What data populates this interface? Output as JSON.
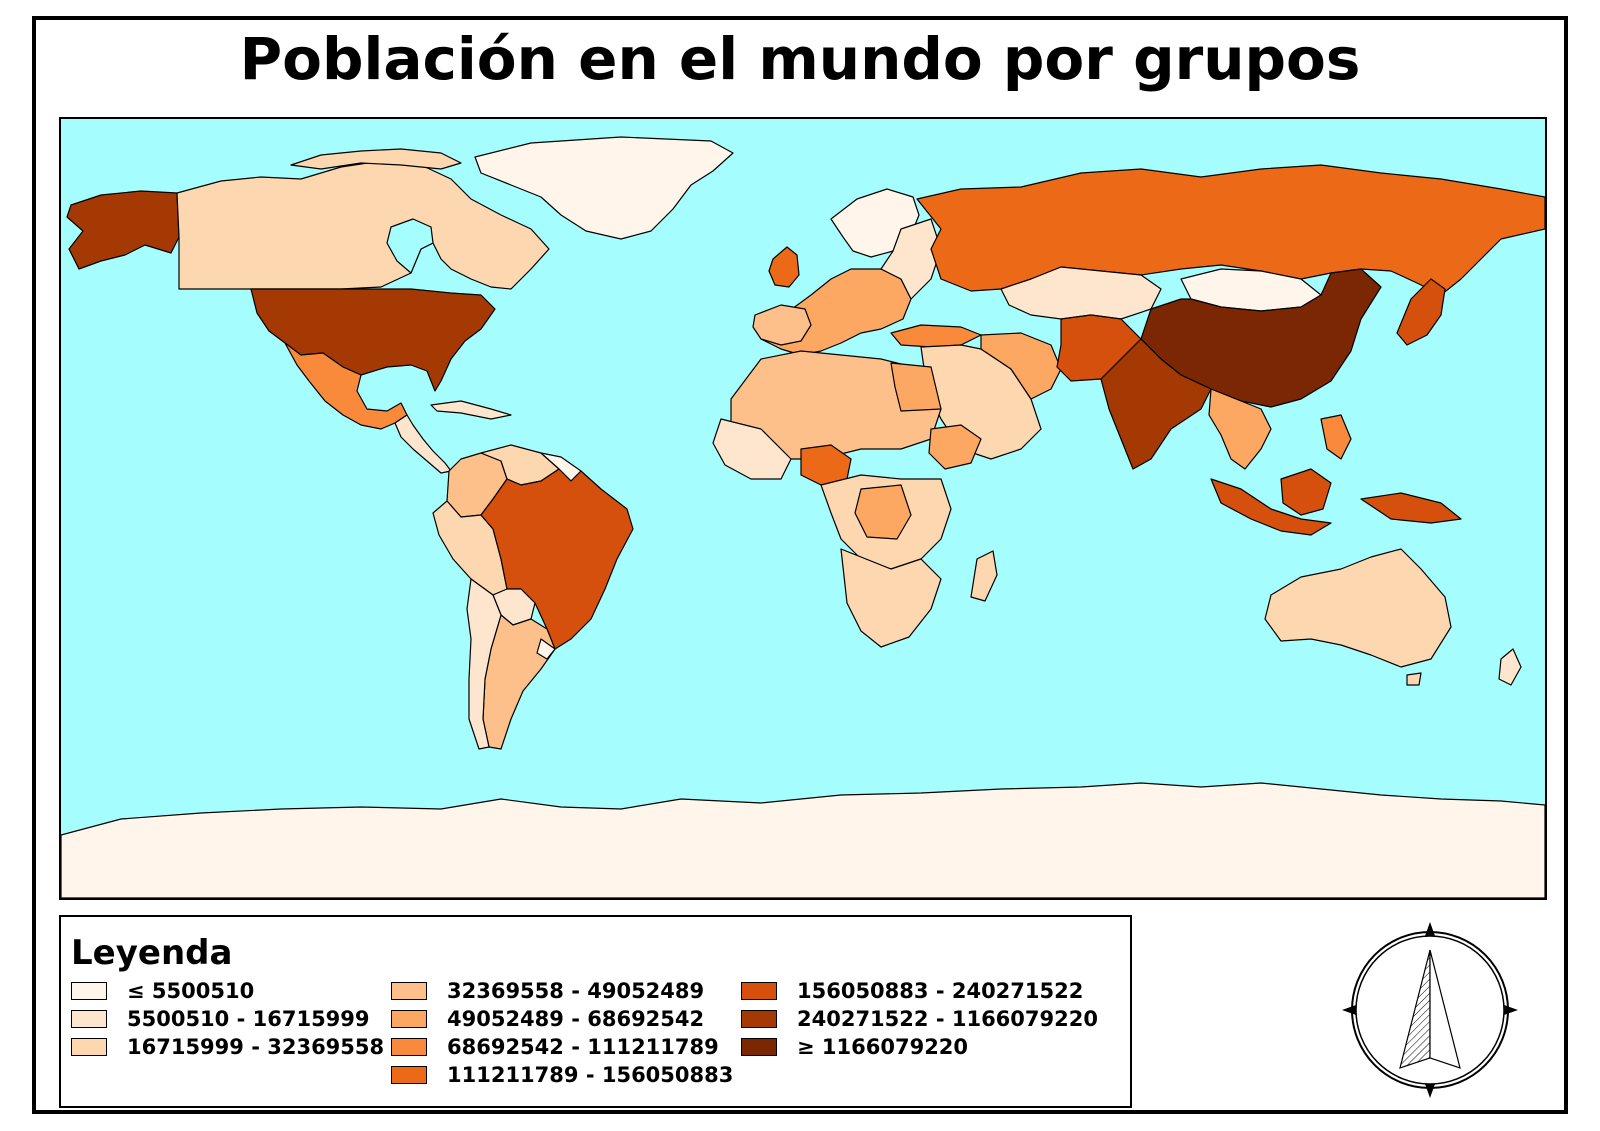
{
  "title": "Población en el mundo por grupos",
  "legend": {
    "title": "Leyenda",
    "items": [
      {
        "label": "≤ 5500510",
        "color": "#fff5eb"
      },
      {
        "label": "5500510 - 16715999",
        "color": "#fee6ce"
      },
      {
        "label": "16715999 - 32369558",
        "color": "#fdd7b0"
      },
      {
        "label": "32369558 - 49052489",
        "color": "#fdc08a"
      },
      {
        "label": "49052489 - 68692542",
        "color": "#fda862"
      },
      {
        "label": "68692542 - 111211789",
        "color": "#f98a3c"
      },
      {
        "label": "111211789 - 156050883",
        "color": "#ec6a17"
      },
      {
        "label": "156050883 - 240271522",
        "color": "#d5500c"
      },
      {
        "label": "240271522 - 1166079220",
        "color": "#a53904"
      },
      {
        "label": "≥ 1166079220",
        "color": "#7b2704"
      }
    ]
  },
  "ocean_color": "#a5fdfe",
  "compass_icon": "north-arrow-icon"
}
